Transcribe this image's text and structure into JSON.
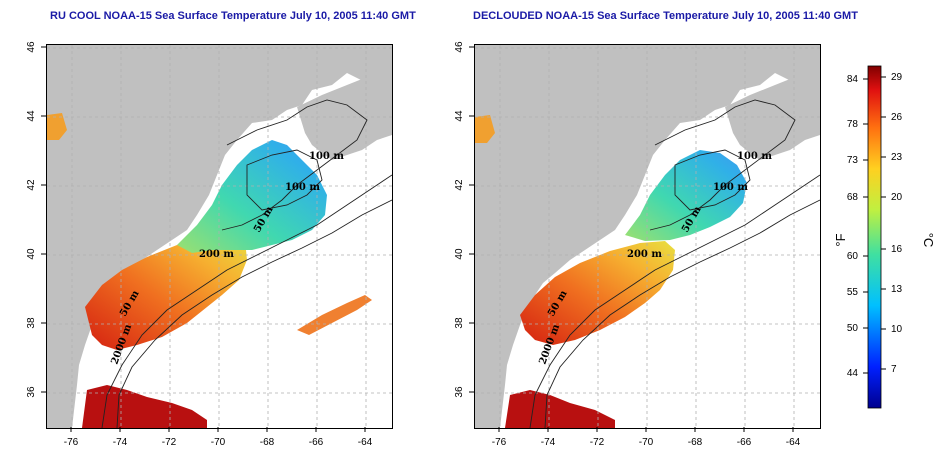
{
  "left_panel": {
    "title": "RU COOL NOAA-15 Sea Surface Temperature July 10, 2005 11:40 GMT",
    "contour_labels": [
      "100 m",
      "100 m",
      "50 m",
      "200 m",
      "50 m",
      "2000 m"
    ]
  },
  "right_panel": {
    "title": "DECLOUDED NOAA-15 Sea Surface Temperature July 10, 2005 11:40 GMT",
    "contour_labels": [
      "100 m",
      "100 m",
      "50 m",
      "200 m",
      "50 m",
      "2000 m"
    ]
  },
  "axes": {
    "lon_ticks": [
      "-76",
      "-74",
      "-72",
      "-70",
      "-68",
      "-66",
      "-64"
    ],
    "lat_ticks": [
      "46",
      "44",
      "42",
      "40",
      "38",
      "36"
    ]
  },
  "colorbar": {
    "fahrenheit_unit": "°F",
    "celsius_unit": "°C",
    "fahrenheit_ticks": [
      "84",
      "78",
      "73",
      "68",
      "60",
      "55",
      "50",
      "44"
    ],
    "celsius_ticks": [
      "29",
      "26",
      "23",
      "20",
      "16",
      "13",
      "10",
      "7"
    ]
  },
  "colors": {
    "land": "#c0c0c0",
    "ocean_nodata": "#ffffff",
    "title": "#1a1aa6",
    "grid": "#b0b0b0",
    "contour": "#222222"
  }
}
